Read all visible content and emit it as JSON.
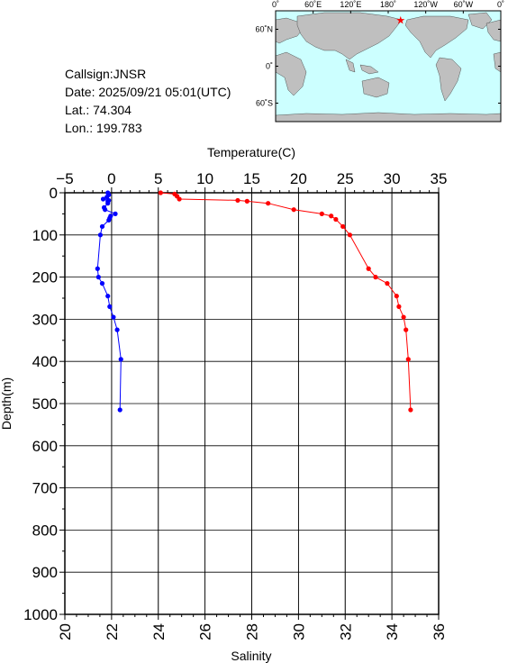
{
  "station": {
    "callsign": "Callsign:JNSR",
    "date": "Date:  2025/09/21 05:01(UTC)",
    "lat": "Lat.:  74.304",
    "lon": "Lon.:  199.783"
  },
  "map": {
    "top_labels": [
      "0˚",
      "60˚E",
      "120˚E",
      "180˚",
      "120˚W",
      "60˚W",
      "0˚"
    ],
    "side_labels": [
      "60˚N",
      "0˚",
      "60˚S"
    ],
    "marker_lon": 199.783,
    "marker_lat": 74.304,
    "ocean_color": "#ccffff",
    "land_color": "#bfbfbf",
    "marker_color": "#ff0000"
  },
  "chart_data": {
    "type": "line",
    "top_axis_label": "Temperature(C)",
    "bottom_axis_label": "Salinity",
    "left_axis_label": "Depth(m)",
    "temperature_ticks": [
      "−5",
      "0",
      "5",
      "10",
      "15",
      "20",
      "25",
      "30",
      "35"
    ],
    "salinity_ticks": [
      "20",
      "22",
      "24",
      "26",
      "28",
      "30",
      "32",
      "34",
      "36"
    ],
    "depth_ticks": [
      "0",
      "100",
      "200",
      "300",
      "400",
      "500",
      "600",
      "700",
      "800",
      "900",
      "1000"
    ],
    "temperature_range": [
      -5,
      35
    ],
    "salinity_range": [
      20,
      36
    ],
    "depth_range": [
      0,
      1000
    ],
    "grid": true,
    "series": [
      {
        "axis": "temperature",
        "color": "#0000ff",
        "points": [
          {
            "depth": 0,
            "value": -0.4
          },
          {
            "depth": 5,
            "value": -0.3
          },
          {
            "depth": 10,
            "value": -0.5
          },
          {
            "depth": 15,
            "value": -0.9
          },
          {
            "depth": 18,
            "value": -0.3
          },
          {
            "depth": 20,
            "value": -0.4
          },
          {
            "depth": 25,
            "value": -0.4
          },
          {
            "depth": 35,
            "value": -0.8
          },
          {
            "depth": 40,
            "value": -0.7
          },
          {
            "depth": 50,
            "value": 0.4
          },
          {
            "depth": 55,
            "value": -0.1
          },
          {
            "depth": 60,
            "value": -0.2
          },
          {
            "depth": 65,
            "value": -0.3
          },
          {
            "depth": 80,
            "value": -1.0
          },
          {
            "depth": 100,
            "value": -1.2
          },
          {
            "depth": 180,
            "value": -1.5
          },
          {
            "depth": 200,
            "value": -1.4
          },
          {
            "depth": 215,
            "value": -1.0
          },
          {
            "depth": 245,
            "value": -0.4
          },
          {
            "depth": 270,
            "value": -0.2
          },
          {
            "depth": 295,
            "value": 0.2
          },
          {
            "depth": 325,
            "value": 0.6
          },
          {
            "depth": 395,
            "value": 1.0
          },
          {
            "depth": 515,
            "value": 0.9
          }
        ]
      },
      {
        "axis": "salinity",
        "color": "#ff0000",
        "points": [
          {
            "depth": 0,
            "value": 24.1
          },
          {
            "depth": 3,
            "value": 24.7
          },
          {
            "depth": 8,
            "value": 24.8
          },
          {
            "depth": 15,
            "value": 24.9
          },
          {
            "depth": 18,
            "value": 27.4
          },
          {
            "depth": 20,
            "value": 27.8
          },
          {
            "depth": 25,
            "value": 28.7
          },
          {
            "depth": 40,
            "value": 29.8
          },
          {
            "depth": 50,
            "value": 31.0
          },
          {
            "depth": 55,
            "value": 31.4
          },
          {
            "depth": 63,
            "value": 31.6
          },
          {
            "depth": 80,
            "value": 31.9
          },
          {
            "depth": 100,
            "value": 32.2
          },
          {
            "depth": 180,
            "value": 33.0
          },
          {
            "depth": 200,
            "value": 33.3
          },
          {
            "depth": 215,
            "value": 33.8
          },
          {
            "depth": 245,
            "value": 34.2
          },
          {
            "depth": 270,
            "value": 34.3
          },
          {
            "depth": 295,
            "value": 34.5
          },
          {
            "depth": 325,
            "value": 34.6
          },
          {
            "depth": 395,
            "value": 34.7
          },
          {
            "depth": 515,
            "value": 34.8
          }
        ]
      }
    ]
  }
}
